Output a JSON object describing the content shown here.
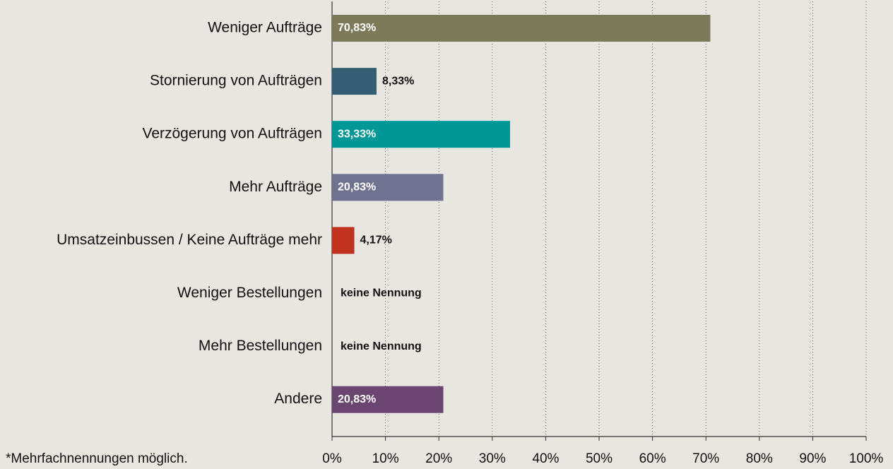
{
  "chart_data": {
    "type": "hbar",
    "categories": [
      "Weniger Aufträge",
      "Stornierung von Aufträgen",
      "Verzögerung von Aufträgen",
      "Mehr Aufträge",
      "Umsatzeinbussen / Keine Aufträge mehr",
      "Weniger Bestellungen",
      "Mehr Bestellungen",
      "Andere"
    ],
    "values": [
      70.83,
      8.33,
      33.33,
      20.83,
      4.17,
      0,
      0,
      20.83
    ],
    "value_labels": [
      "70,83%",
      "8,33%",
      "33,33%",
      "20,83%",
      "4,17%",
      "keine Nennung",
      "keine Nennung",
      "20,83%"
    ],
    "colors": [
      "#7d7a5a",
      "#345f72",
      "#009797",
      "#6f7390",
      "#c0321e",
      null,
      null,
      "#6b4670"
    ],
    "xlim": [
      0,
      100
    ],
    "xticks": [
      {
        "value": 0,
        "label": "0%"
      },
      {
        "value": 10,
        "label": "10%"
      },
      {
        "value": 20,
        "label": "20%"
      },
      {
        "value": 30,
        "label": "30%"
      },
      {
        "value": 40,
        "label": "40%"
      },
      {
        "value": 50,
        "label": "50%"
      },
      {
        "value": 60,
        "label": "60%"
      },
      {
        "value": 70,
        "label": "70%"
      },
      {
        "value": 80,
        "label": "80%"
      },
      {
        "value": 90,
        "label": "90%"
      },
      {
        "value": 100,
        "label": "100%"
      }
    ],
    "grid": true,
    "footnote": "*Mehrfachnennungen möglich."
  }
}
